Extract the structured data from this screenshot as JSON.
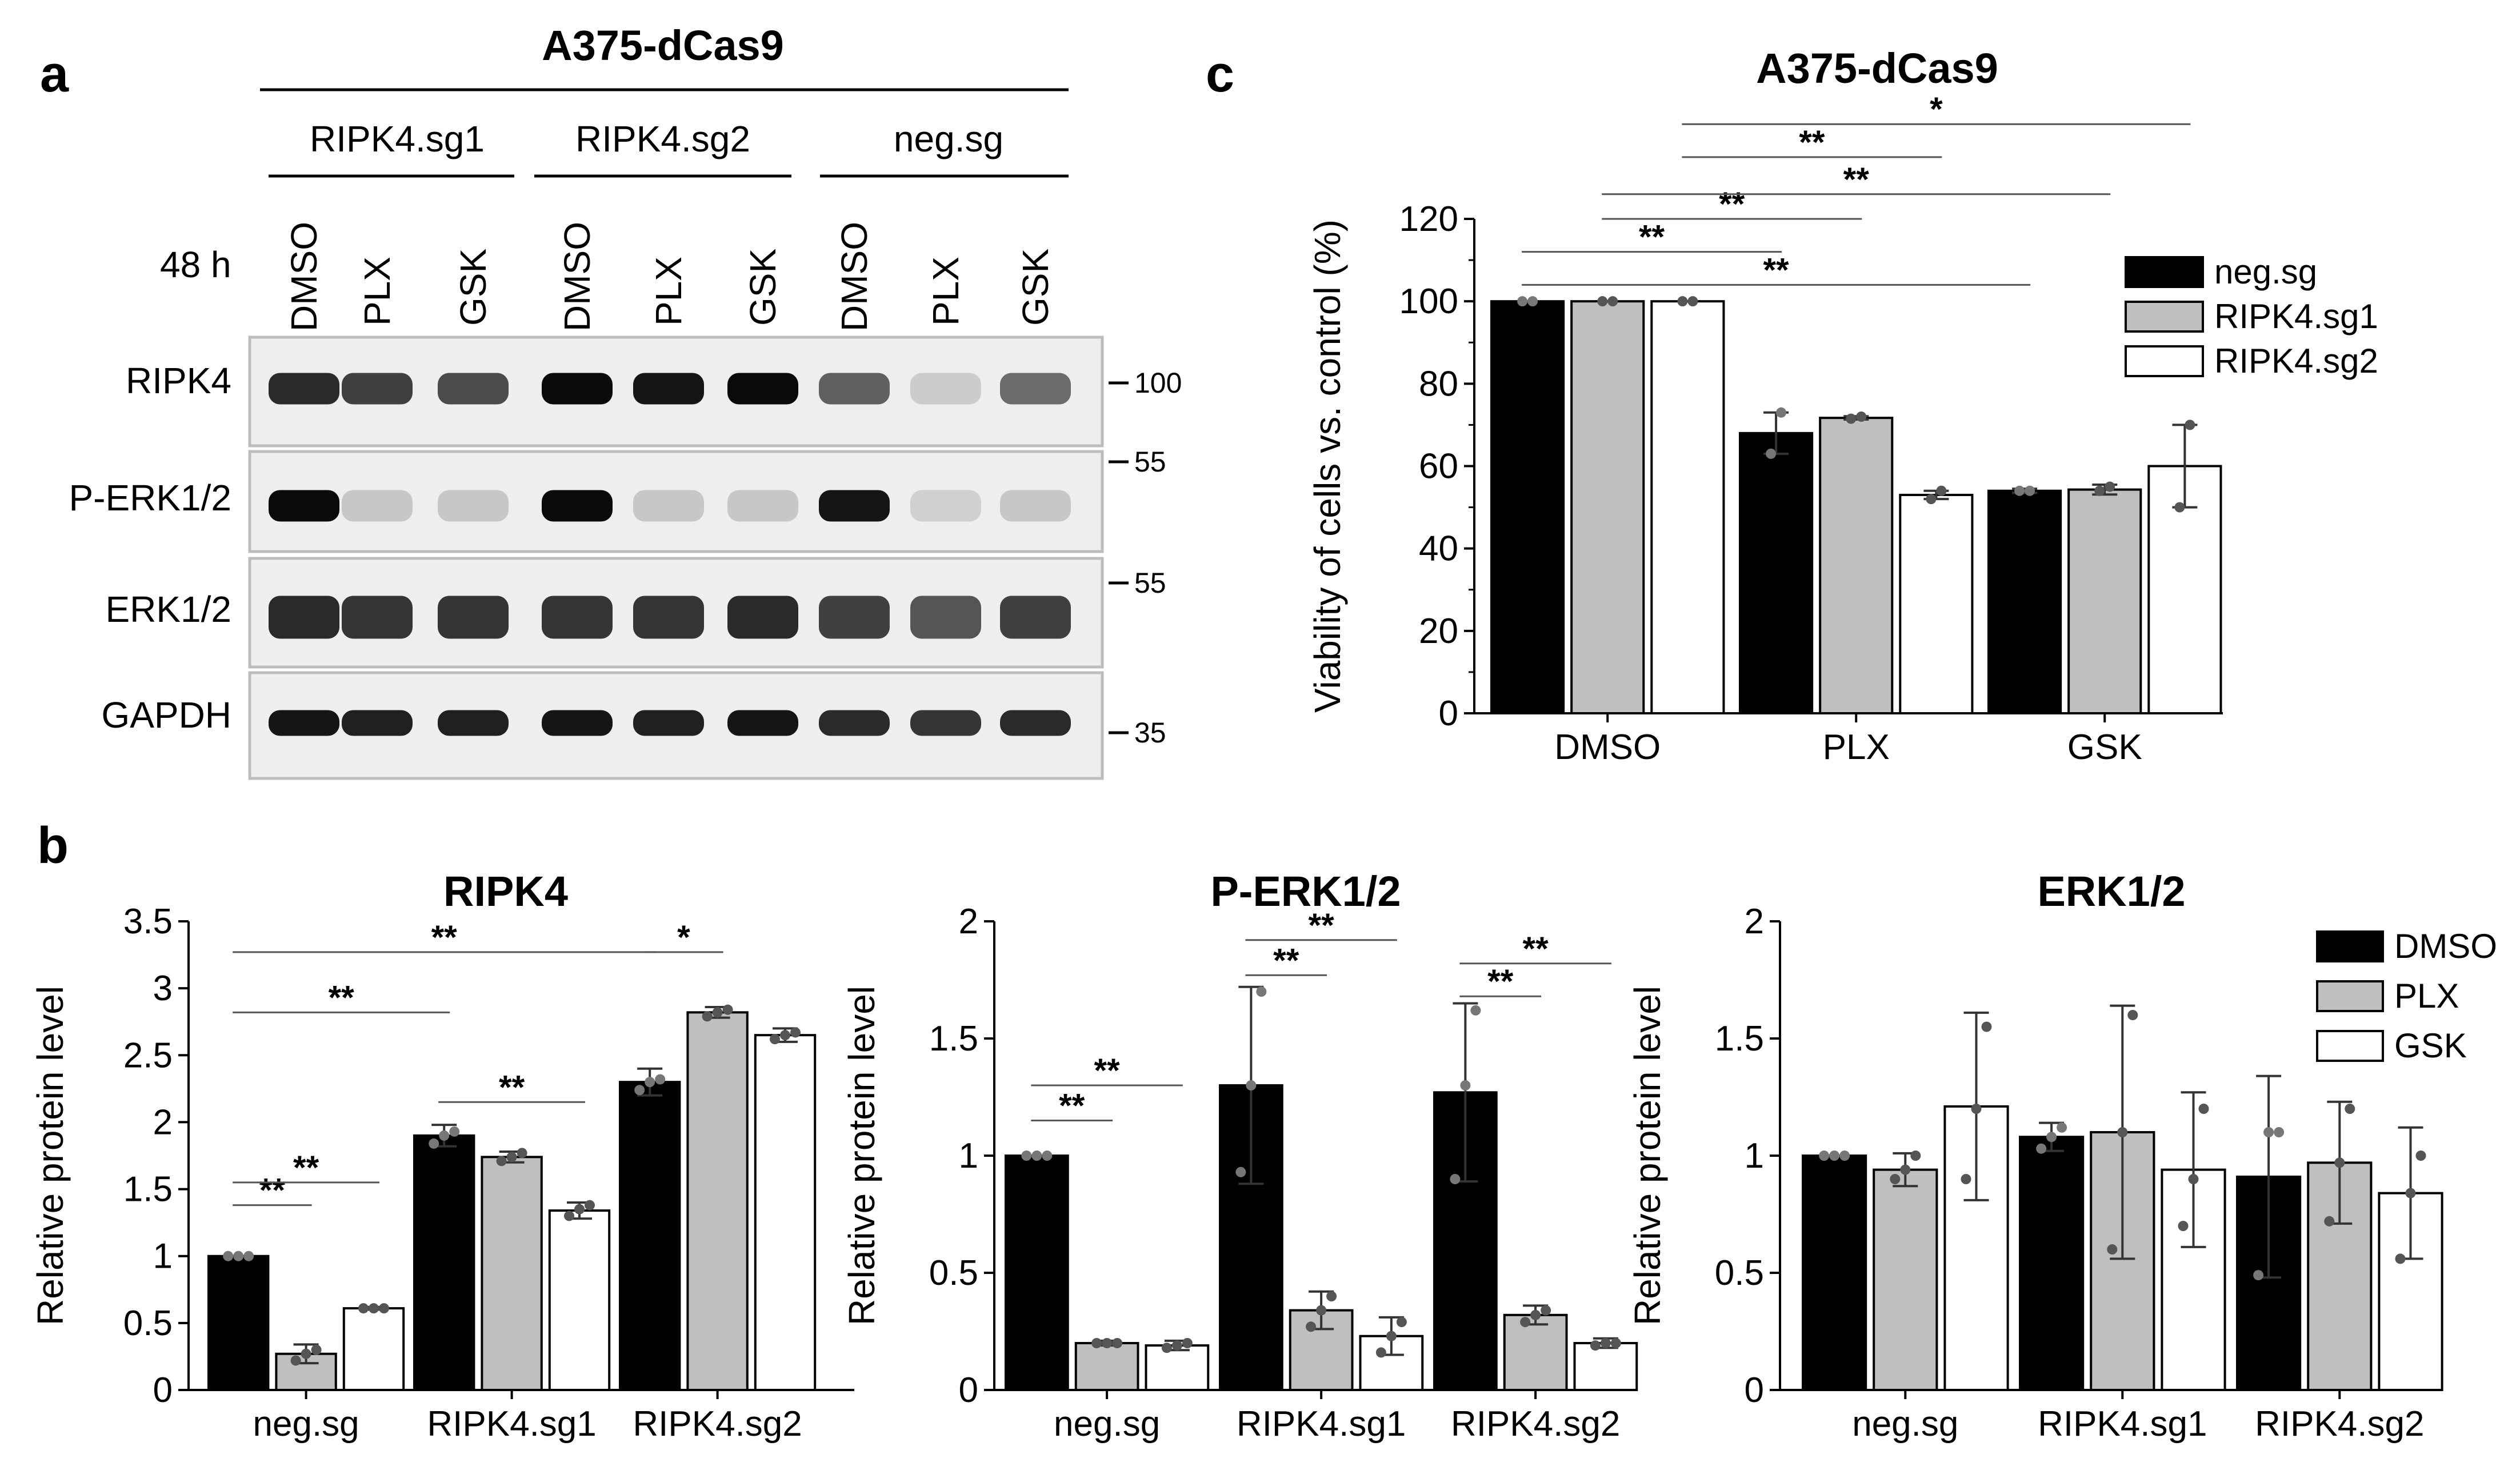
{
  "panel_labels": {
    "a": "a",
    "b": "b",
    "c": "c"
  },
  "blot": {
    "cell_line": "A375-dCas9",
    "timepoint": "48 h",
    "groups": [
      "RIPK4.sg1",
      "RIPK4.sg2",
      "neg.sg"
    ],
    "lanes": [
      "DMSO",
      "PLX",
      "GSK",
      "DMSO",
      "PLX",
      "GSK",
      "DMSO",
      "PLX",
      "GSK"
    ],
    "rows": [
      {
        "label": "RIPK4",
        "intensities": [
          0.85,
          0.75,
          0.7,
          1.0,
          0.95,
          1.0,
          0.6,
          0.1,
          0.55
        ]
      },
      {
        "label": "P-ERK1/2",
        "intensities": [
          1.0,
          0.12,
          0.12,
          1.0,
          0.12,
          0.12,
          0.95,
          0.08,
          0.12
        ]
      },
      {
        "label": "ERK1/2",
        "intensities": [
          0.85,
          0.8,
          0.8,
          0.8,
          0.8,
          0.85,
          0.75,
          0.65,
          0.75
        ]
      },
      {
        "label": "GAPDH",
        "intensities": [
          0.95,
          0.9,
          0.9,
          0.95,
          0.9,
          0.95,
          0.85,
          0.8,
          0.85
        ]
      }
    ],
    "mw_markers": [
      "100",
      "55",
      "55",
      "35"
    ]
  },
  "chart_data": [
    {
      "id": "b1",
      "type": "bar",
      "title": "RIPK4",
      "ylabel": "Relative protein level",
      "categories": [
        "neg.sg",
        "RIPK4.sg1",
        "RIPK4.sg2"
      ],
      "ylim": [
        0,
        3.5
      ],
      "yticks": [
        0,
        0.5,
        1,
        1.5,
        2,
        2.5,
        3,
        3.5
      ],
      "ytick_labels": [
        "0",
        "0.5",
        "1",
        "1.5",
        "2",
        "2.5",
        "3",
        "3.5"
      ],
      "series": [
        {
          "name": "DMSO",
          "color": "#000000",
          "values": [
            1.0,
            1.9,
            2.3
          ],
          "errors": [
            0.0,
            0.08,
            0.1
          ],
          "points": [
            [
              1,
              1,
              1
            ],
            [
              1.84,
              1.9,
              1.93
            ],
            [
              2.24,
              2.3,
              2.32
            ]
          ]
        },
        {
          "name": "PLX",
          "color": "#bfbfbf",
          "values": [
            0.27,
            1.74,
            2.82
          ],
          "errors": [
            0.07,
            0.04,
            0.04
          ],
          "points": [
            [
              0.22,
              0.27,
              0.3
            ],
            [
              1.71,
              1.74,
              1.77
            ],
            [
              2.79,
              2.82,
              2.84
            ]
          ]
        },
        {
          "name": "GSK",
          "color": "#ffffff",
          "values": [
            0.61,
            1.34,
            2.65
          ],
          "errors": [
            0.01,
            0.06,
            0.05
          ],
          "points": [
            [
              0.61,
              0.61,
              0.61
            ],
            [
              1.3,
              1.35,
              1.38
            ],
            [
              2.62,
              2.65,
              2.67
            ]
          ]
        }
      ],
      "sig": [
        {
          "from": [
            0,
            0
          ],
          "to": [
            0,
            1
          ],
          "y": 1.38,
          "text": "**"
        },
        {
          "from": [
            0,
            0
          ],
          "to": [
            0,
            2
          ],
          "y": 1.55,
          "text": "**"
        },
        {
          "from": [
            0,
            0
          ],
          "to": [
            1,
            0
          ],
          "y": 2.82,
          "text": "**"
        },
        {
          "from": [
            0,
            0
          ],
          "to": [
            2,
            0
          ],
          "y": 3.27,
          "text": "**"
        },
        {
          "from": [
            1,
            0
          ],
          "to": [
            1,
            2
          ],
          "y": 2.15,
          "text": "**"
        },
        {
          "from": [
            2,
            0
          ],
          "to": [
            2,
            1
          ],
          "y": 3.27,
          "text": "*"
        }
      ]
    },
    {
      "id": "b2",
      "type": "bar",
      "title": "P-ERK1/2",
      "ylabel": "Relative protein level",
      "categories": [
        "neg.sg",
        "RIPK4.sg1",
        "RIPK4.sg2"
      ],
      "ylim": [
        0,
        2
      ],
      "yticks": [
        0,
        0.5,
        1,
        1.5,
        2
      ],
      "ytick_labels": [
        "0",
        "0.5",
        "1",
        "1.5",
        "2"
      ],
      "series": [
        {
          "name": "DMSO",
          "color": "#000000",
          "values": [
            1.0,
            1.3,
            1.27
          ],
          "errors": [
            0.0,
            0.42,
            0.38
          ],
          "points": [
            [
              1,
              1,
              1
            ],
            [
              0.93,
              1.3,
              1.7
            ],
            [
              0.9,
              1.3,
              1.62
            ]
          ]
        },
        {
          "name": "PLX",
          "color": "#bfbfbf",
          "values": [
            0.2,
            0.34,
            0.32
          ],
          "errors": [
            0.01,
            0.08,
            0.04
          ],
          "points": [
            [
              0.2,
              0.2,
              0.2
            ],
            [
              0.27,
              0.34,
              0.4
            ],
            [
              0.29,
              0.32,
              0.34
            ]
          ]
        },
        {
          "name": "GSK",
          "color": "#ffffff",
          "values": [
            0.19,
            0.23,
            0.2
          ],
          "errors": [
            0.02,
            0.08,
            0.02
          ],
          "points": [
            [
              0.18,
              0.19,
              0.2
            ],
            [
              0.16,
              0.23,
              0.29
            ],
            [
              0.19,
              0.2,
              0.2
            ]
          ]
        }
      ],
      "sig": [
        {
          "from": [
            0,
            0
          ],
          "to": [
            0,
            1
          ],
          "y": 1.15,
          "text": "**"
        },
        {
          "from": [
            0,
            0
          ],
          "to": [
            0,
            2
          ],
          "y": 1.3,
          "text": "**"
        },
        {
          "from": [
            1,
            0
          ],
          "to": [
            1,
            1
          ],
          "y": 1.77,
          "text": "**"
        },
        {
          "from": [
            1,
            0
          ],
          "to": [
            1,
            2
          ],
          "y": 1.92,
          "text": "**"
        },
        {
          "from": [
            2,
            0
          ],
          "to": [
            2,
            1
          ],
          "y": 1.68,
          "text": "**"
        },
        {
          "from": [
            2,
            0
          ],
          "to": [
            2,
            2
          ],
          "y": 1.82,
          "text": "**"
        }
      ]
    },
    {
      "id": "b3",
      "type": "bar",
      "title": "ERK1/2",
      "ylabel": "Relative protein level",
      "categories": [
        "neg.sg",
        "RIPK4.sg1",
        "RIPK4.sg2"
      ],
      "ylim": [
        0,
        2
      ],
      "yticks": [
        0,
        0.5,
        1,
        1.5,
        2
      ],
      "ytick_labels": [
        "0",
        "0.5",
        "1",
        "1.5",
        "2"
      ],
      "legend": [
        "DMSO",
        "PLX",
        "GSK"
      ],
      "series": [
        {
          "name": "DMSO",
          "color": "#000000",
          "values": [
            1.0,
            1.08,
            0.91
          ],
          "errors": [
            0.0,
            0.06,
            0.43
          ],
          "points": [
            [
              1,
              1,
              1
            ],
            [
              1.03,
              1.08,
              1.12
            ],
            [
              0.49,
              1.1,
              1.1
            ]
          ]
        },
        {
          "name": "PLX",
          "color": "#bfbfbf",
          "values": [
            0.94,
            1.1,
            0.97
          ],
          "errors": [
            0.07,
            0.54,
            0.26
          ],
          "points": [
            [
              0.9,
              0.94,
              1.0
            ],
            [
              0.6,
              1.1,
              1.6
            ],
            [
              0.72,
              0.97,
              1.2
            ]
          ]
        },
        {
          "name": "GSK",
          "color": "#ffffff",
          "values": [
            1.21,
            0.94,
            0.84
          ],
          "errors": [
            0.4,
            0.33,
            0.28
          ],
          "points": [
            [
              0.9,
              1.2,
              1.55
            ],
            [
              0.7,
              0.9,
              1.2
            ],
            [
              0.56,
              0.84,
              1.0
            ]
          ]
        }
      ]
    },
    {
      "id": "c",
      "type": "bar",
      "title": "A375-dCas9",
      "ylabel": "Viability of cells vs. control (%)",
      "categories": [
        "DMSO",
        "PLX",
        "GSK"
      ],
      "ylim": [
        0,
        120
      ],
      "yticks": [
        0,
        20,
        40,
        60,
        80,
        100,
        120
      ],
      "ytick_labels": [
        "0",
        "20",
        "40",
        "60",
        "80",
        "100",
        "120"
      ],
      "legend": [
        "neg.sg",
        "RIPK4.sg1",
        "RIPK4.sg2"
      ],
      "series": [
        {
          "name": "neg.sg",
          "color": "#000000",
          "values": [
            100,
            68,
            54
          ],
          "errors": [
            0,
            5,
            0.5
          ],
          "points": [
            [
              100,
              100
            ],
            [
              63,
              73
            ],
            [
              54,
              54
            ]
          ]
        },
        {
          "name": "RIPK4.sg1",
          "color": "#bfbfbf",
          "values": [
            100,
            71.7,
            54.3
          ],
          "errors": [
            0,
            0.4,
            1.2
          ],
          "points": [
            [
              100,
              100
            ],
            [
              71.5,
              72
            ],
            [
              54,
              55
            ]
          ]
        },
        {
          "name": "RIPK4.sg2",
          "color": "#ffffff",
          "values": [
            100,
            53,
            60
          ],
          "errors": [
            0,
            1,
            10
          ],
          "points": [
            [
              100,
              100
            ],
            [
              52,
              54
            ],
            [
              50,
              70
            ]
          ]
        }
      ],
      "sig": [
        {
          "from": [
            0,
            0
          ],
          "to": [
            1,
            0
          ],
          "y": 112,
          "text": "**"
        },
        {
          "from": [
            0,
            0
          ],
          "to": [
            2,
            0
          ],
          "y": 104,
          "text": "**"
        },
        {
          "from": [
            0,
            1
          ],
          "to": [
            1,
            1
          ],
          "y": 120,
          "text": "**"
        },
        {
          "from": [
            0,
            1
          ],
          "to": [
            2,
            1
          ],
          "y": 126,
          "text": "**"
        },
        {
          "from": [
            0,
            2
          ],
          "to": [
            1,
            2
          ],
          "y": 135,
          "text": "**"
        },
        {
          "from": [
            0,
            2
          ],
          "to": [
            2,
            2
          ],
          "y": 143,
          "text": "*"
        }
      ]
    }
  ]
}
